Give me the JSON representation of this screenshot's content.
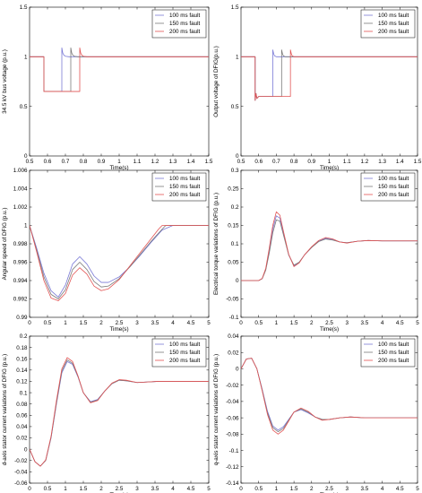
{
  "colors": {
    "series_100": "#7a7ad6",
    "series_150": "#7a7a7a",
    "series_200": "#e25454"
  },
  "chart_data": [
    {
      "id": "p1",
      "type": "line",
      "xlabel": "Time(s)",
      "ylabel": "34.5 kV bus voltage (p.u.)",
      "xlim": [
        0.5,
        1.5
      ],
      "ylim": [
        0,
        1.5
      ],
      "xticks": [
        0.5,
        0.6,
        0.7,
        0.8,
        0.9,
        1,
        1.1,
        1.2,
        1.3,
        1.4,
        1.5
      ],
      "yticks": [
        0,
        0.5,
        1,
        1.5
      ],
      "legend": [
        "100 ms fault",
        "150 ms fault",
        "200 ms fault"
      ],
      "legend_position": "top-right",
      "grid": false,
      "series": [
        {
          "name": "100 ms fault",
          "color": "#7a7ad6",
          "x": [
            0.5,
            0.58,
            0.58,
            0.68,
            0.68,
            0.685,
            0.69,
            0.7,
            0.72,
            0.75,
            0.8,
            0.9,
            1.0,
            1.5
          ],
          "y": [
            1.0,
            1.0,
            0.65,
            0.65,
            1.09,
            1.04,
            1.02,
            1.005,
            1.0,
            1.0,
            1.0,
            1.0,
            1.0,
            1.0
          ]
        },
        {
          "name": "150 ms fault",
          "color": "#7a7a7a",
          "x": [
            0.5,
            0.58,
            0.58,
            0.73,
            0.73,
            0.735,
            0.74,
            0.75,
            0.77,
            0.8,
            0.85,
            0.9,
            1.0,
            1.5
          ],
          "y": [
            1.0,
            1.0,
            0.65,
            0.65,
            1.09,
            1.04,
            1.02,
            1.005,
            1.0,
            1.0,
            1.0,
            1.0,
            1.0,
            1.0
          ]
        },
        {
          "name": "200 ms fault",
          "color": "#e25454",
          "x": [
            0.5,
            0.58,
            0.58,
            0.78,
            0.78,
            0.785,
            0.79,
            0.8,
            0.82,
            0.85,
            0.9,
            1.0,
            1.5
          ],
          "y": [
            1.0,
            1.0,
            0.65,
            0.65,
            1.09,
            1.04,
            1.02,
            1.005,
            1.0,
            1.0,
            1.0,
            1.0,
            1.0
          ]
        }
      ]
    },
    {
      "id": "p2",
      "type": "line",
      "xlabel": "Time(s)",
      "ylabel": "Output voltage of DFIG(p.u.)",
      "xlim": [
        0.5,
        1.5
      ],
      "ylim": [
        0,
        1.5
      ],
      "xticks": [
        0.5,
        0.6,
        0.7,
        0.8,
        0.9,
        1,
        1.1,
        1.2,
        1.3,
        1.4,
        1.5
      ],
      "yticks": [
        0,
        0.5,
        1,
        1.5
      ],
      "legend": [
        "100 ms fault",
        "150 ms fault",
        "200 ms fault"
      ],
      "legend_position": "top-right",
      "grid": false,
      "series": [
        {
          "name": "100 ms fault",
          "color": "#7a7ad6",
          "x": [
            0.5,
            0.58,
            0.58,
            0.585,
            0.59,
            0.6,
            0.68,
            0.68,
            0.685,
            0.69,
            0.7,
            0.72,
            0.75,
            0.8,
            1.5
          ],
          "y": [
            1.0,
            1.0,
            0.56,
            0.63,
            0.58,
            0.6,
            0.6,
            1.07,
            1.03,
            1.01,
            1.0,
            1.0,
            1.0,
            1.0,
            1.0
          ]
        },
        {
          "name": "150 ms fault",
          "color": "#7a7a7a",
          "x": [
            0.5,
            0.58,
            0.58,
            0.585,
            0.59,
            0.6,
            0.73,
            0.73,
            0.735,
            0.74,
            0.75,
            0.77,
            0.8,
            0.85,
            1.5
          ],
          "y": [
            1.0,
            1.0,
            0.56,
            0.63,
            0.58,
            0.6,
            0.6,
            1.07,
            1.03,
            1.01,
            1.0,
            1.0,
            1.0,
            1.0,
            1.0
          ]
        },
        {
          "name": "200 ms fault",
          "color": "#e25454",
          "x": [
            0.5,
            0.58,
            0.58,
            0.585,
            0.59,
            0.6,
            0.78,
            0.78,
            0.785,
            0.79,
            0.8,
            0.82,
            0.85,
            0.9,
            1.5
          ],
          "y": [
            1.0,
            1.0,
            0.56,
            0.63,
            0.58,
            0.6,
            0.6,
            1.07,
            1.03,
            1.01,
            1.0,
            1.0,
            1.0,
            1.0,
            1.0
          ]
        }
      ]
    },
    {
      "id": "p3",
      "type": "line",
      "xlabel": "Time(s)",
      "ylabel": "Angular speed of DFIG  (p.u.)",
      "xlim": [
        0,
        5
      ],
      "ylim": [
        0.99,
        1.006
      ],
      "xticks": [
        0,
        0.5,
        1,
        1.5,
        2,
        2.5,
        3,
        3.5,
        4,
        4.5,
        5
      ],
      "yticks": [
        0.99,
        0.992,
        0.994,
        0.996,
        0.998,
        1,
        1.002,
        1.004,
        1.006
      ],
      "legend": [
        "100 ms fault",
        "150 ms fault",
        "200 ms fault"
      ],
      "legend_position": "top-right",
      "grid": false,
      "series": [
        {
          "name": "100 ms fault",
          "color": "#7a7ad6",
          "x": [
            0,
            0.2,
            0.4,
            0.6,
            0.8,
            1.0,
            1.2,
            1.4,
            1.6,
            1.8,
            2.0,
            2.2,
            2.5,
            2.8,
            3.1,
            3.4,
            3.7,
            4.0,
            5.0
          ],
          "y": [
            1.0,
            0.9975,
            0.9948,
            0.9929,
            0.9922,
            0.9935,
            0.9958,
            0.9966,
            0.9958,
            0.9945,
            0.9938,
            0.9938,
            0.9944,
            0.9955,
            0.9968,
            0.9982,
            0.9995,
            1.0,
            1.0
          ]
        },
        {
          "name": "150 ms fault",
          "color": "#7a7a7a",
          "x": [
            0,
            0.2,
            0.4,
            0.6,
            0.8,
            1.0,
            1.2,
            1.4,
            1.6,
            1.8,
            2.0,
            2.2,
            2.5,
            2.8,
            3.1,
            3.4,
            3.7,
            3.8,
            5.0
          ],
          "y": [
            1.0,
            0.9973,
            0.9944,
            0.9925,
            0.992,
            0.993,
            0.9952,
            0.996,
            0.9952,
            0.9939,
            0.9933,
            0.9934,
            0.9942,
            0.9955,
            0.9969,
            0.9983,
            0.9996,
            1.0,
            1.0
          ]
        },
        {
          "name": "200 ms fault",
          "color": "#e25454",
          "x": [
            0,
            0.2,
            0.4,
            0.6,
            0.8,
            1.0,
            1.2,
            1.4,
            1.6,
            1.8,
            2.0,
            2.2,
            2.5,
            2.8,
            3.1,
            3.4,
            3.6,
            3.7,
            5.0
          ],
          "y": [
            1.0,
            0.9971,
            0.994,
            0.9921,
            0.9918,
            0.9926,
            0.9946,
            0.9954,
            0.9947,
            0.9934,
            0.9929,
            0.9931,
            0.9941,
            0.9956,
            0.9971,
            0.9986,
            0.9996,
            1.0,
            1.0
          ]
        }
      ]
    },
    {
      "id": "p4",
      "type": "line",
      "xlabel": "Time(s)",
      "ylabel": "Electrical torque variations of DFIG  (p.u.)",
      "xlim": [
        0,
        5
      ],
      "ylim": [
        -0.1,
        0.3
      ],
      "xticks": [
        0,
        0.5,
        1,
        1.5,
        2,
        2.5,
        3,
        3.5,
        4,
        4.5,
        5
      ],
      "yticks": [
        -0.1,
        -0.05,
        0,
        0.05,
        0.1,
        0.15,
        0.2,
        0.25,
        0.3
      ],
      "legend": [
        "100 ms fault",
        "150 ms fault",
        "200 ms fault"
      ],
      "legend_position": "top-right",
      "grid": false,
      "series": [
        {
          "name": "100 ms fault",
          "color": "#7a7ad6",
          "x": [
            0,
            0.3,
            0.5,
            0.6,
            0.7,
            0.8,
            0.9,
            1.0,
            1.1,
            1.2,
            1.35,
            1.5,
            1.65,
            1.8,
            2.0,
            2.2,
            2.4,
            2.6,
            2.8,
            3.0,
            3.3,
            3.6,
            4.0,
            4.5,
            5.0
          ],
          "y": [
            0.0,
            0.0,
            0.0,
            0.005,
            0.03,
            0.08,
            0.14,
            0.176,
            0.17,
            0.13,
            0.07,
            0.04,
            0.05,
            0.07,
            0.09,
            0.107,
            0.115,
            0.112,
            0.105,
            0.103,
            0.107,
            0.109,
            0.108,
            0.108,
            0.108
          ]
        },
        {
          "name": "150 ms fault",
          "color": "#7a7a7a",
          "x": [
            0,
            0.3,
            0.5,
            0.6,
            0.7,
            0.8,
            0.9,
            1.0,
            1.1,
            1.2,
            1.35,
            1.5,
            1.65,
            1.8,
            2.0,
            2.2,
            2.4,
            2.6,
            2.8,
            3.0,
            3.3,
            3.6,
            4.0,
            4.5,
            5.0
          ],
          "y": [
            0.0,
            0.0,
            0.0,
            0.005,
            0.028,
            0.075,
            0.13,
            0.165,
            0.162,
            0.125,
            0.07,
            0.042,
            0.05,
            0.07,
            0.09,
            0.106,
            0.113,
            0.11,
            0.105,
            0.103,
            0.107,
            0.109,
            0.108,
            0.108,
            0.108
          ]
        },
        {
          "name": "200 ms fault",
          "color": "#e25454",
          "x": [
            0,
            0.3,
            0.5,
            0.6,
            0.7,
            0.8,
            0.9,
            1.0,
            1.1,
            1.2,
            1.35,
            1.5,
            1.65,
            1.8,
            2.0,
            2.2,
            2.4,
            2.6,
            2.8,
            3.0,
            3.3,
            3.6,
            4.0,
            4.5,
            5.0
          ],
          "y": [
            0.0,
            0.0,
            0.0,
            0.006,
            0.033,
            0.088,
            0.15,
            0.187,
            0.178,
            0.135,
            0.072,
            0.038,
            0.048,
            0.07,
            0.092,
            0.109,
            0.117,
            0.113,
            0.105,
            0.102,
            0.107,
            0.109,
            0.108,
            0.108,
            0.108
          ]
        }
      ]
    },
    {
      "id": "p5",
      "type": "line",
      "xlabel": "Time(s)",
      "ylabel": "d-axis stator current variations of DFIG  (p.u.)",
      "xlim": [
        0,
        5
      ],
      "ylim": [
        -0.06,
        0.2
      ],
      "xticks": [
        0,
        0.5,
        1,
        1.5,
        2,
        2.5,
        3,
        3.5,
        4,
        4.5,
        5
      ],
      "yticks": [
        -0.06,
        -0.04,
        -0.02,
        0,
        0.02,
        0.04,
        0.06,
        0.08,
        0.1,
        0.12,
        0.14,
        0.16,
        0.18,
        0.2
      ],
      "legend": [
        "100 ms fault",
        "150 ms fault",
        "200 ms fault"
      ],
      "legend_position": "top-right",
      "grid": false,
      "series": [
        {
          "name": "100 ms fault",
          "color": "#7a7ad6",
          "x": [
            0,
            0.15,
            0.3,
            0.45,
            0.6,
            0.75,
            0.9,
            1.05,
            1.2,
            1.35,
            1.5,
            1.7,
            1.9,
            2.1,
            2.3,
            2.5,
            2.7,
            3.0,
            3.3,
            3.6,
            4.0,
            4.5,
            5.0
          ],
          "y": [
            0.0,
            -0.022,
            -0.03,
            -0.02,
            0.02,
            0.08,
            0.135,
            0.155,
            0.15,
            0.128,
            0.1,
            0.084,
            0.088,
            0.103,
            0.116,
            0.122,
            0.121,
            0.118,
            0.119,
            0.12,
            0.12,
            0.12,
            0.12
          ]
        },
        {
          "name": "150 ms fault",
          "color": "#7a7a7a",
          "x": [
            0,
            0.15,
            0.3,
            0.45,
            0.6,
            0.75,
            0.9,
            1.05,
            1.2,
            1.35,
            1.5,
            1.7,
            1.9,
            2.1,
            2.3,
            2.5,
            2.7,
            3.0,
            3.3,
            3.6,
            4.0,
            4.5,
            5.0
          ],
          "y": [
            0.0,
            -0.022,
            -0.03,
            -0.02,
            0.021,
            0.082,
            0.138,
            0.158,
            0.152,
            0.129,
            0.1,
            0.083,
            0.087,
            0.103,
            0.116,
            0.122,
            0.121,
            0.118,
            0.119,
            0.12,
            0.12,
            0.12,
            0.12
          ]
        },
        {
          "name": "200 ms fault",
          "color": "#e25454",
          "x": [
            0,
            0.15,
            0.3,
            0.45,
            0.6,
            0.75,
            0.9,
            1.05,
            1.2,
            1.35,
            1.5,
            1.7,
            1.9,
            2.1,
            2.3,
            2.5,
            2.7,
            3.0,
            3.3,
            3.6,
            4.0,
            4.5,
            5.0
          ],
          "y": [
            0.0,
            -0.022,
            -0.03,
            -0.019,
            0.023,
            0.086,
            0.142,
            0.162,
            0.155,
            0.13,
            0.1,
            0.082,
            0.086,
            0.103,
            0.117,
            0.123,
            0.122,
            0.118,
            0.119,
            0.12,
            0.12,
            0.12,
            0.12
          ]
        }
      ]
    },
    {
      "id": "p6",
      "type": "line",
      "xlabel": "Time(s)",
      "ylabel": "q-axis stator current variations of DFIG  (p.u.)",
      "xlim": [
        0,
        5
      ],
      "ylim": [
        -0.14,
        0.04
      ],
      "xticks": [
        0,
        0.5,
        1,
        1.5,
        2,
        2.5,
        3,
        3.5,
        4,
        4.5,
        5
      ],
      "yticks": [
        -0.14,
        -0.12,
        -0.1,
        -0.08,
        -0.06,
        -0.04,
        -0.02,
        0,
        0.02,
        0.04
      ],
      "legend": [
        "100 ms fault",
        "150 ms fault",
        "200 ms fault"
      ],
      "legend_position": "top-right",
      "grid": false,
      "series": [
        {
          "name": "100 ms fault",
          "color": "#7a7ad6",
          "x": [
            0,
            0.15,
            0.3,
            0.45,
            0.6,
            0.75,
            0.9,
            1.05,
            1.2,
            1.35,
            1.5,
            1.7,
            1.9,
            2.1,
            2.3,
            2.5,
            2.8,
            3.1,
            3.5,
            4.0,
            4.5,
            5.0
          ],
          "y": [
            0.0,
            0.012,
            0.013,
            0.0,
            -0.025,
            -0.052,
            -0.07,
            -0.075,
            -0.071,
            -0.062,
            -0.053,
            -0.05,
            -0.054,
            -0.059,
            -0.062,
            -0.062,
            -0.06,
            -0.059,
            -0.06,
            -0.06,
            -0.06,
            -0.06
          ]
        },
        {
          "name": "150 ms fault",
          "color": "#7a7a7a",
          "x": [
            0,
            0.15,
            0.3,
            0.45,
            0.6,
            0.75,
            0.9,
            1.05,
            1.2,
            1.35,
            1.5,
            1.7,
            1.9,
            2.1,
            2.3,
            2.5,
            2.8,
            3.1,
            3.5,
            4.0,
            4.5,
            5.0
          ],
          "y": [
            0.0,
            0.012,
            0.013,
            0.0,
            -0.026,
            -0.054,
            -0.072,
            -0.077,
            -0.073,
            -0.063,
            -0.053,
            -0.049,
            -0.053,
            -0.059,
            -0.062,
            -0.062,
            -0.06,
            -0.059,
            -0.06,
            -0.06,
            -0.06,
            -0.06
          ]
        },
        {
          "name": "200 ms fault",
          "color": "#e25454",
          "x": [
            0,
            0.15,
            0.3,
            0.45,
            0.6,
            0.75,
            0.9,
            1.05,
            1.2,
            1.35,
            1.5,
            1.7,
            1.9,
            2.1,
            2.3,
            2.5,
            2.8,
            3.1,
            3.5,
            4.0,
            4.5,
            5.0
          ],
          "y": [
            0.0,
            0.012,
            0.013,
            0.0,
            -0.027,
            -0.056,
            -0.075,
            -0.08,
            -0.075,
            -0.064,
            -0.053,
            -0.048,
            -0.052,
            -0.059,
            -0.063,
            -0.062,
            -0.06,
            -0.059,
            -0.06,
            -0.06,
            -0.06,
            -0.06
          ]
        }
      ]
    }
  ]
}
